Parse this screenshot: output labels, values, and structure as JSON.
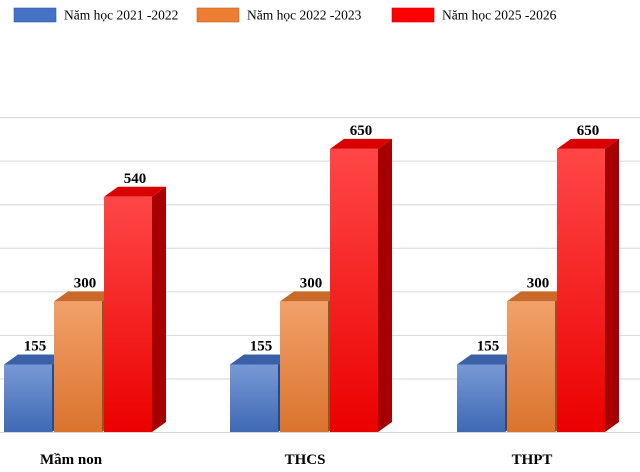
{
  "chart_data": {
    "type": "bar",
    "style": "3d-clustered",
    "categories": [
      "Mầm non",
      "THCS",
      "THPT"
    ],
    "series": [
      {
        "name": "Năm học 2021 -2022",
        "values": [
          155,
          155,
          155
        ],
        "color": "#4472C4"
      },
      {
        "name": "Năm học 2022 -2023",
        "values": [
          300,
          300,
          300
        ],
        "color": "#ED7D31"
      },
      {
        "name": "Năm học 2025 -2026",
        "values": [
          540,
          650,
          650
        ],
        "color": "#FF0000"
      }
    ],
    "title": "",
    "xlabel": "",
    "ylabel": "",
    "ylim": [
      0,
      700
    ],
    "grid": true,
    "legend_position": "top"
  }
}
